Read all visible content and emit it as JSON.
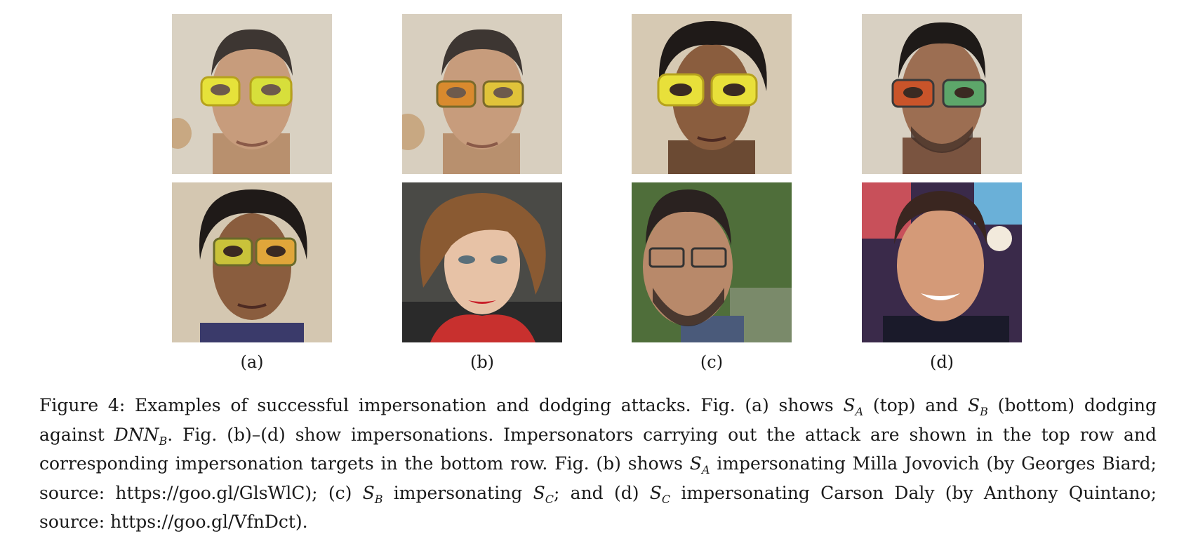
{
  "panels": [
    {
      "label": "(a)",
      "top_subject": "S_A with glasses",
      "bottom_subject": "S_B with glasses"
    },
    {
      "label": "(b)",
      "top_subject": "S_A with glasses",
      "bottom_subject": "Milla Jovovich"
    },
    {
      "label": "(c)",
      "top_subject": "S_B with glasses",
      "bottom_subject": "S_C"
    },
    {
      "label": "(d)",
      "top_subject": "S_C with glasses",
      "bottom_subject": "Carson Daly"
    }
  ],
  "caption": {
    "l1_a": "Figure 4:  Examples of successful impersonation and dodging attacks.  Fig. (a) shows ",
    "l1_b": " (top) and ",
    "l1_c": " (bottom) dodging",
    "l2_a": "against ",
    "l2_b": ".  Fig. (b)–(d) show impersonations.  Impersonators carrying out the attack are shown in the top row and",
    "l3": "corresponding impersonation targets in the bottom row. Fig. (b) shows ",
    "l3_b": " impersonating Milla Jovovich (by Georges Biard;",
    "l4_a": "source: https://goo.gl/GlsWlC); (c) ",
    "l4_b": " impersonating ",
    "l4_c": "; and (d) ",
    "l4_d": " impersonating Carson Daly (by Anthony Quintano;",
    "l5": "source: https://goo.gl/VfnDct).",
    "S": "S",
    "A": "A",
    "B": "B",
    "C": "C",
    "DNN": "DNN"
  },
  "colors": {
    "glasses_yellow": "#e6e23a",
    "glasses_mixed": "#d98a2e",
    "background_beige": "#d9d1c2"
  }
}
